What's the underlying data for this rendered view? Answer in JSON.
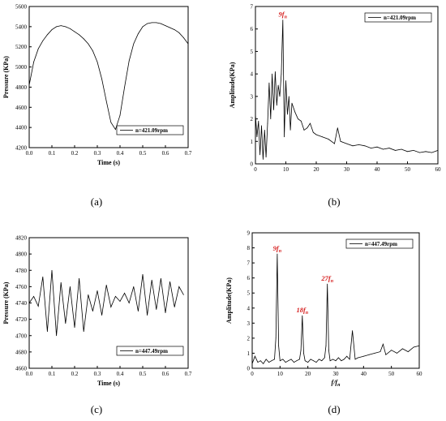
{
  "panels": [
    {
      "id": "a",
      "caption": "(a)",
      "chart_data": {
        "type": "line",
        "xlabel": "Time (s)",
        "ylabel": "Pressure (KPa)",
        "xlim": [
          0.0,
          0.7
        ],
        "ylim": [
          4200,
          5600
        ],
        "xticks": [
          "0.0",
          "0.1",
          "0.2",
          "0.3",
          "0.4",
          "0.5",
          "0.6",
          "0.7"
        ],
        "yticks": [
          "4200",
          "4400",
          "4600",
          "4800",
          "5000",
          "5200",
          "5400",
          "5600"
        ],
        "legend": "n=421.09rpm",
        "legend_position": "lower-right",
        "series": [
          {
            "name": "n=421.09rpm",
            "x": [
              0.0,
              0.02,
              0.04,
              0.06,
              0.08,
              0.1,
              0.12,
              0.14,
              0.16,
              0.18,
              0.2,
              0.22,
              0.24,
              0.26,
              0.28,
              0.3,
              0.32,
              0.34,
              0.36,
              0.38,
              0.4,
              0.42,
              0.44,
              0.46,
              0.48,
              0.5,
              0.52,
              0.54,
              0.56,
              0.58,
              0.6,
              0.62,
              0.64,
              0.66,
              0.68,
              0.7
            ],
            "y": [
              4820,
              5050,
              5180,
              5260,
              5320,
              5370,
              5400,
              5410,
              5400,
              5380,
              5350,
              5320,
              5280,
              5230,
              5160,
              5050,
              4880,
              4660,
              4450,
              4380,
              4520,
              4800,
              5060,
              5230,
              5330,
              5400,
              5430,
              5440,
              5440,
              5430,
              5410,
              5390,
              5370,
              5340,
              5290,
              5230
            ]
          }
        ]
      }
    },
    {
      "id": "b",
      "caption": "(b)",
      "chart_data": {
        "type": "line",
        "xlabel": "f/f_n",
        "ylabel": "Amplitude(KPa)",
        "xlim": [
          0,
          60
        ],
        "ylim": [
          0,
          7
        ],
        "xticks": [
          "0",
          "10",
          "20",
          "30",
          "40",
          "50",
          "60"
        ],
        "yticks": [
          "0",
          "1",
          "2",
          "3",
          "4",
          "5",
          "6",
          "7"
        ],
        "legend": "n=421.09rpm",
        "legend_position": "top-right",
        "annotations": [
          {
            "text": "9f",
            "sub": "n",
            "x": 9,
            "y": 6.4
          }
        ],
        "series": [
          {
            "name": "n=421.09rpm",
            "x": [
              0,
              0.5,
              1,
              1.5,
              2,
              2.5,
              3,
              3.5,
              4,
              4.5,
              5,
              5.5,
              6,
              6.5,
              7,
              7.5,
              8,
              8.5,
              9,
              9.5,
              10,
              10.5,
              11,
              11.5,
              12,
              13,
              14,
              15,
              16,
              17,
              18,
              19,
              20,
              22,
              24,
              26,
              27,
              28,
              30,
              32,
              34,
              36,
              38,
              40,
              42,
              44,
              46,
              48,
              50,
              52,
              54,
              56,
              58,
              60
            ],
            "y": [
              2.2,
              1.2,
              1.9,
              0.4,
              1.7,
              0.2,
              1.5,
              0.3,
              1.8,
              3.6,
              2.0,
              4.0,
              2.4,
              4.1,
              2.6,
              3.5,
              3.0,
              4.0,
              6.4,
              1.2,
              3.7,
              2.2,
              3.0,
              1.5,
              2.7,
              2.3,
              2.0,
              1.9,
              1.5,
              1.6,
              1.8,
              1.4,
              1.3,
              1.2,
              1.1,
              0.9,
              1.6,
              1.0,
              0.9,
              0.8,
              0.85,
              0.8,
              0.7,
              0.75,
              0.65,
              0.7,
              0.6,
              0.65,
              0.55,
              0.6,
              0.5,
              0.55,
              0.5,
              0.6
            ]
          }
        ]
      }
    },
    {
      "id": "c",
      "caption": "(c)",
      "chart_data": {
        "type": "line",
        "xlabel": "Time (s)",
        "ylabel": "Pressure (KPa)",
        "xlim": [
          0.0,
          0.7
        ],
        "ylim": [
          4660,
          4820
        ],
        "xticks": [
          "0.0",
          "0.1",
          "0.2",
          "0.3",
          "0.4",
          "0.5",
          "0.6",
          "0.7"
        ],
        "yticks": [
          "4660",
          "4680",
          "4700",
          "4720",
          "4740",
          "4760",
          "4780",
          "4800",
          "4820"
        ],
        "legend": "n=447.49rpm",
        "legend_position": "lower-right",
        "series": [
          {
            "name": "n=447.49rpm",
            "x": [
              0.0,
              0.02,
              0.04,
              0.06,
              0.08,
              0.1,
              0.12,
              0.14,
              0.16,
              0.18,
              0.2,
              0.22,
              0.24,
              0.26,
              0.28,
              0.3,
              0.32,
              0.34,
              0.36,
              0.38,
              0.4,
              0.42,
              0.44,
              0.46,
              0.48,
              0.5,
              0.52,
              0.54,
              0.56,
              0.58,
              0.6,
              0.62,
              0.64,
              0.66,
              0.68
            ],
            "y": [
              4740,
              4748,
              4736,
              4772,
              4705,
              4780,
              4700,
              4765,
              4715,
              4760,
              4710,
              4770,
              4705,
              4750,
              4730,
              4755,
              4725,
              4762,
              4735,
              4748,
              4742,
              4752,
              4740,
              4760,
              4730,
              4775,
              4725,
              4768,
              4732,
              4770,
              4728,
              4766,
              4735,
              4760,
              4750
            ]
          }
        ]
      }
    },
    {
      "id": "d",
      "caption": "(d)",
      "chart_data": {
        "type": "line",
        "xlabel": "f/f_n",
        "ylabel": "Amplitude(KPa)",
        "xlim": [
          0,
          60
        ],
        "ylim": [
          0,
          9
        ],
        "xticks": [
          "0",
          "10",
          "20",
          "30",
          "40",
          "50",
          "60"
        ],
        "yticks": [
          "0",
          "1",
          "2",
          "3",
          "4",
          "5",
          "6",
          "7",
          "8",
          "9"
        ],
        "legend": "n=447.49rpm",
        "legend_position": "top-right",
        "annotations": [
          {
            "text": "9f",
            "sub": "n",
            "x": 9,
            "y": 7.6
          },
          {
            "text": "18f",
            "sub": "n",
            "x": 18,
            "y": 3.5
          },
          {
            "text": "27f",
            "sub": "n",
            "x": 27,
            "y": 5.6
          }
        ],
        "series": [
          {
            "name": "n=447.49rpm",
            "x": [
              0,
              1,
              2,
              3,
              4,
              5,
              6,
              7,
              8,
              8.5,
              9,
              9.5,
              10,
              11,
              12,
              13,
              14,
              15,
              16,
              17,
              17.5,
              18,
              18.5,
              19,
              20,
              21,
              22,
              23,
              24,
              25,
              26,
              26.5,
              27,
              27.5,
              28,
              29,
              30,
              31,
              32,
              33,
              34,
              35,
              36,
              37,
              38,
              40,
              42,
              44,
              46,
              47,
              48,
              50,
              52,
              54,
              56,
              58,
              60
            ],
            "y": [
              0.3,
              0.8,
              0.4,
              0.5,
              0.3,
              0.6,
              0.4,
              0.5,
              0.6,
              2.0,
              7.6,
              1.5,
              0.5,
              0.6,
              0.4,
              0.5,
              0.6,
              0.4,
              0.5,
              0.6,
              1.2,
              3.5,
              1.0,
              0.5,
              0.4,
              0.6,
              0.5,
              0.4,
              0.6,
              0.5,
              0.7,
              1.5,
              5.6,
              1.2,
              0.5,
              0.6,
              0.5,
              0.7,
              0.5,
              0.6,
              0.8,
              0.6,
              2.5,
              0.6,
              0.7,
              0.8,
              0.9,
              1.0,
              1.1,
              1.6,
              0.9,
              1.2,
              1.0,
              1.3,
              1.1,
              1.4,
              1.5
            ]
          }
        ]
      }
    }
  ]
}
